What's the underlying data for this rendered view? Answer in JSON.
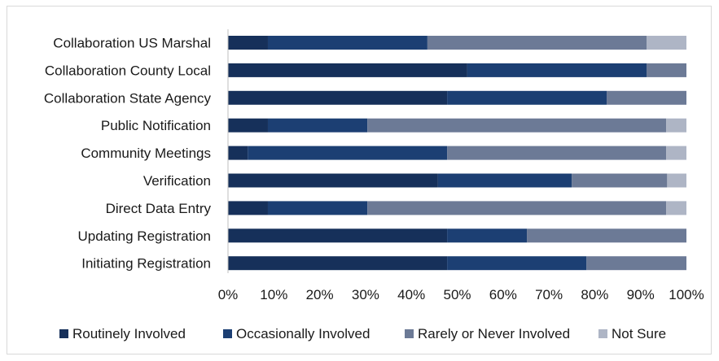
{
  "chart_data": {
    "type": "bar",
    "orientation": "horizontal",
    "stacked": "percent",
    "categories": [
      "Collaboration US Marshal",
      "Collaboration County Local",
      "Collaboration State Agency",
      "Public Notification",
      "Community Meetings",
      "Verification",
      "Direct Data Entry",
      "Updating Registration",
      "Initiating Registration"
    ],
    "series": [
      {
        "name": "Routinely Involved",
        "color": "#16305a",
        "values": [
          8.7,
          52.2,
          47.8,
          8.7,
          4.3,
          45.8,
          8.7,
          47.8,
          47.8
        ]
      },
      {
        "name": "Occasionally Involved",
        "color": "#1c3f73",
        "values": [
          34.8,
          39.1,
          34.8,
          21.7,
          43.5,
          29.2,
          21.7,
          17.4,
          30.4
        ]
      },
      {
        "name": "Rarely or Never Involved",
        "color": "#6c7a96",
        "values": [
          47.8,
          8.7,
          17.4,
          65.2,
          47.8,
          20.8,
          65.2,
          34.8,
          21.8
        ]
      },
      {
        "name": "Not Sure",
        "color": "#aeb5c5",
        "values": [
          8.7,
          0,
          0,
          4.4,
          4.4,
          4.2,
          4.4,
          0,
          0
        ]
      }
    ],
    "xlim": [
      0,
      100
    ],
    "x_ticks": [
      "0%",
      "10%",
      "20%",
      "30%",
      "40%",
      "50%",
      "60%",
      "70%",
      "80%",
      "90%",
      "100%"
    ],
    "grid": false,
    "legend_position": "bottom",
    "title": "",
    "xlabel": "",
    "ylabel": ""
  }
}
